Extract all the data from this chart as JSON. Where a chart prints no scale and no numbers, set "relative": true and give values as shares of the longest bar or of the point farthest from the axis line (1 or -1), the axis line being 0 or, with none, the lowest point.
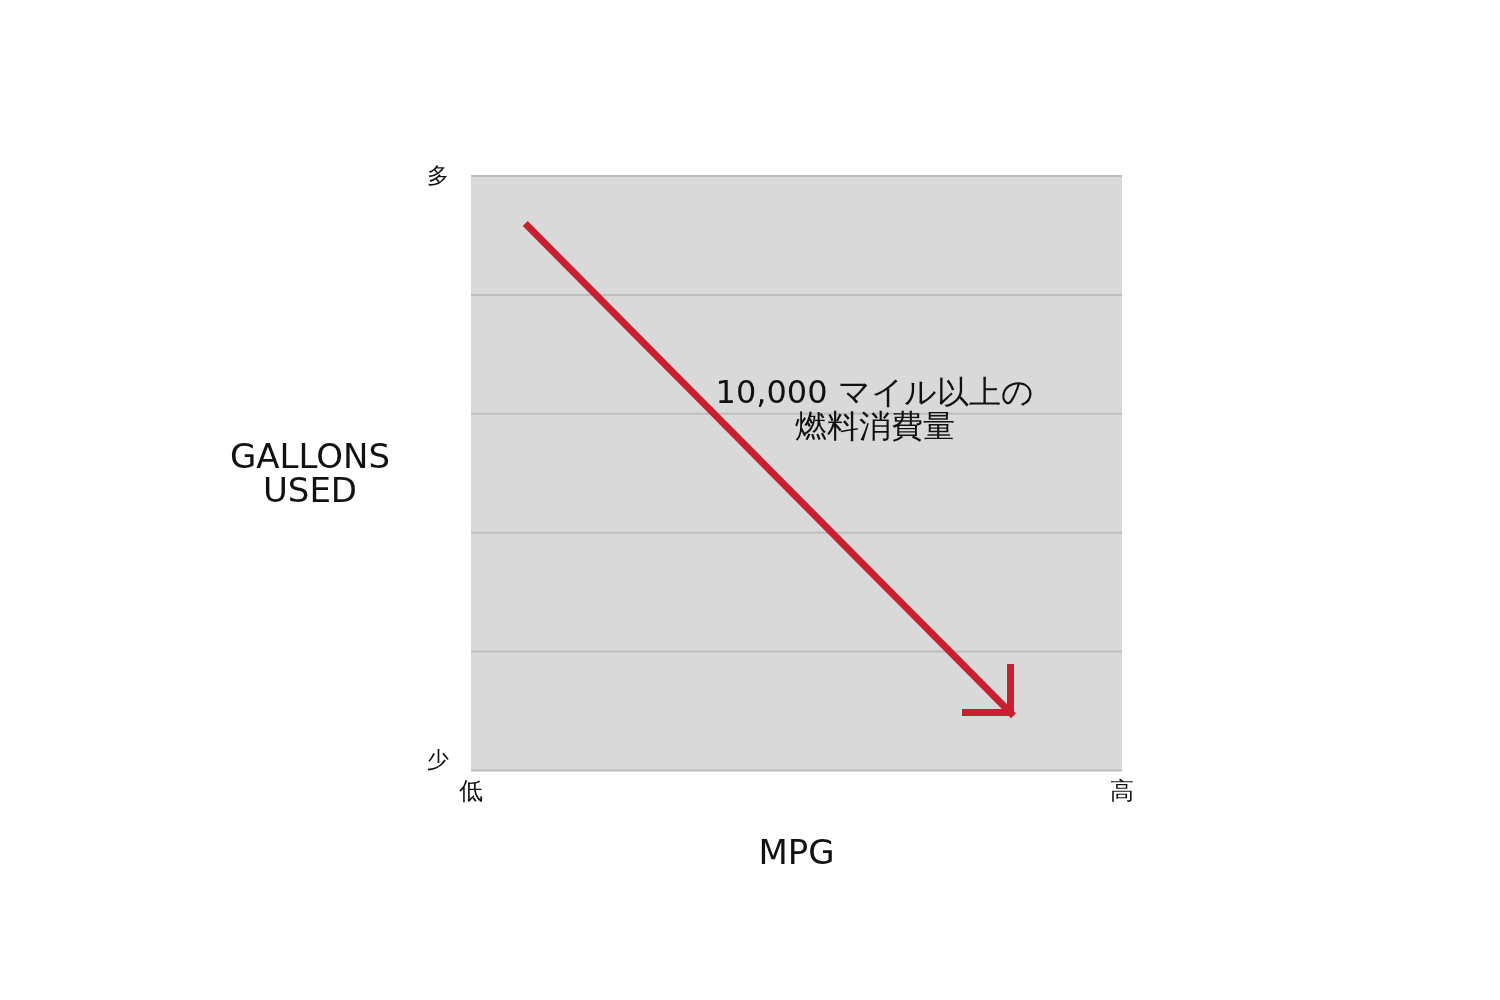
{
  "chart_data": {
    "type": "line",
    "relative": true,
    "xlabel": "MPG",
    "ylabel": "GALLONS USED",
    "categories": [
      "低",
      null,
      null,
      null,
      null,
      null,
      null,
      null,
      null,
      null,
      null,
      null,
      "高"
    ],
    "values": [
      null,
      1,
      0.9,
      0.8,
      0.7,
      0.6,
      0.5,
      0.4,
      0.3,
      0.2,
      0.1,
      null,
      null
    ],
    "color": "#c8202f",
    "grid": "y",
    "marker": "none",
    "annotations": [
      "多",
      "少",
      "10,000 マイル以上の燃料消費量"
    ]
  }
}
